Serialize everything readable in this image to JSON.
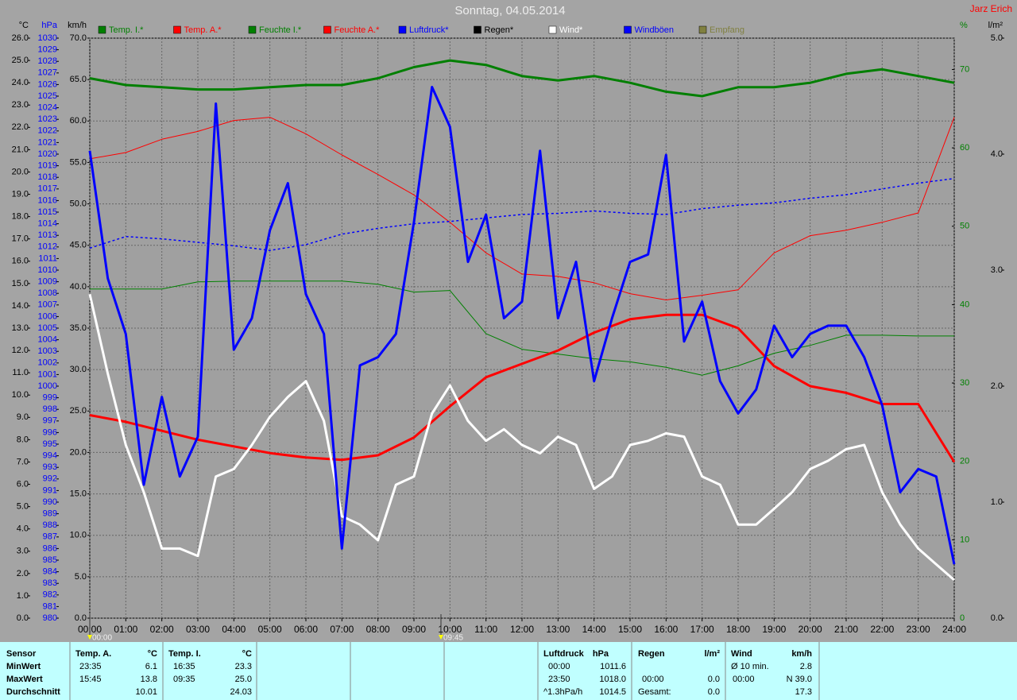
{
  "chart_data": {
    "type": "line",
    "title": "Sonntag, 04.05.2014",
    "author": "Jarz Erich",
    "xlim": [
      0,
      24
    ],
    "xticks": [
      {
        "value": 0,
        "label": "00:00"
      },
      {
        "value": 1,
        "label": "01:00"
      },
      {
        "value": 2,
        "label": "02:00"
      },
      {
        "value": 3,
        "label": "03:00"
      },
      {
        "value": 4,
        "label": "04:00"
      },
      {
        "value": 5,
        "label": "05:00"
      },
      {
        "value": 6,
        "label": "06:00"
      },
      {
        "value": 7,
        "label": "07:00"
      },
      {
        "value": 8,
        "label": "08:00"
      },
      {
        "value": 9,
        "label": "09:00"
      },
      {
        "value": 10,
        "label": "10:00"
      },
      {
        "value": 11,
        "label": "11:00"
      },
      {
        "value": 12,
        "label": "12:00"
      },
      {
        "value": 13,
        "label": "13:00"
      },
      {
        "value": 14,
        "label": "14:00"
      },
      {
        "value": 15,
        "label": "15:00"
      },
      {
        "value": 16,
        "label": "16:00"
      },
      {
        "value": 17,
        "label": "17:00"
      },
      {
        "value": 18,
        "label": "18:00"
      },
      {
        "value": 19,
        "label": "19:00"
      },
      {
        "value": 20,
        "label": "20:00"
      },
      {
        "value": 21,
        "label": "21:00"
      },
      {
        "value": 22,
        "label": "22:00"
      },
      {
        "value": 23,
        "label": "23:00"
      },
      {
        "value": 24,
        "label": "24:00"
      }
    ],
    "markers": [
      {
        "value": 0,
        "label": "00:00"
      },
      {
        "value": 9.75,
        "label": "09:45"
      }
    ],
    "grid": true,
    "axes": {
      "temp": {
        "label": "°C",
        "color": "#000000",
        "lim": [
          0,
          26
        ],
        "ticks": [
          {
            "value": 0,
            "label": "0.0"
          },
          {
            "value": 1,
            "label": "1.0"
          },
          {
            "value": 2,
            "label": "2.0"
          },
          {
            "value": 3,
            "label": "3.0"
          },
          {
            "value": 4,
            "label": "4.0"
          },
          {
            "value": 5,
            "label": "5.0"
          },
          {
            "value": 6,
            "label": "6.0"
          },
          {
            "value": 7,
            "label": "7.0"
          },
          {
            "value": 8,
            "label": "8.0"
          },
          {
            "value": 9,
            "label": "9.0"
          },
          {
            "value": 10,
            "label": "10.0"
          },
          {
            "value": 11,
            "label": "11.0"
          },
          {
            "value": 12,
            "label": "12.0"
          },
          {
            "value": 13,
            "label": "13.0"
          },
          {
            "value": 14,
            "label": "14.0"
          },
          {
            "value": 15,
            "label": "15.0"
          },
          {
            "value": 16,
            "label": "16.0"
          },
          {
            "value": 17,
            "label": "17.0"
          },
          {
            "value": 18,
            "label": "18.0"
          },
          {
            "value": 19,
            "label": "19.0"
          },
          {
            "value": 20,
            "label": "20.0"
          },
          {
            "value": 21,
            "label": "21.0"
          },
          {
            "value": 22,
            "label": "22.0"
          },
          {
            "value": 23,
            "label": "23.0"
          },
          {
            "value": 24,
            "label": "24.0"
          },
          {
            "value": 25,
            "label": "25.0"
          },
          {
            "value": 26,
            "label": "26.0"
          }
        ]
      },
      "pressure": {
        "label": "hPa",
        "color": "#0000ff",
        "lim": [
          980,
          1030
        ],
        "ticks": [
          980,
          981,
          982,
          983,
          984,
          985,
          986,
          987,
          988,
          989,
          990,
          991,
          992,
          993,
          994,
          995,
          996,
          997,
          998,
          999,
          1000,
          1001,
          1002,
          1003,
          1004,
          1005,
          1006,
          1007,
          1008,
          1009,
          1010,
          1011,
          1012,
          1013,
          1014,
          1015,
          1016,
          1017,
          1018,
          1019,
          1020,
          1021,
          1022,
          1023,
          1024,
          1025,
          1026,
          1027,
          1028,
          1029,
          1030
        ]
      },
      "speed": {
        "label": "km/h",
        "color": "#000000",
        "lim": [
          0,
          70
        ],
        "ticks": [
          {
            "value": 0,
            "label": "0.0"
          },
          {
            "value": 5,
            "label": "5.0"
          },
          {
            "value": 10,
            "label": "10.0"
          },
          {
            "value": 15,
            "label": "15.0"
          },
          {
            "value": 20,
            "label": "20.0"
          },
          {
            "value": 25,
            "label": "25.0"
          },
          {
            "value": 30,
            "label": "30.0"
          },
          {
            "value": 35,
            "label": "35.0"
          },
          {
            "value": 40,
            "label": "40.0"
          },
          {
            "value": 45,
            "label": "45.0"
          },
          {
            "value": 50,
            "label": "50.0"
          },
          {
            "value": 55,
            "label": "55.0"
          },
          {
            "value": 60,
            "label": "60.0"
          },
          {
            "value": 65,
            "label": "65.0"
          },
          {
            "value": 70,
            "label": "70.0"
          }
        ]
      },
      "humidity": {
        "label": "%",
        "color": "#008000",
        "lim": [
          0,
          74
        ],
        "ticks": [
          0,
          10,
          20,
          30,
          40,
          50,
          60,
          70
        ]
      },
      "rain": {
        "label": "l/m²",
        "color": "#000000",
        "lim": [
          0,
          5
        ],
        "ticks": [
          {
            "value": 0,
            "label": "0.0"
          },
          {
            "value": 1,
            "label": "1.0"
          },
          {
            "value": 2,
            "label": "2.0"
          },
          {
            "value": 3,
            "label": "3.0"
          },
          {
            "value": 4,
            "label": "4.0"
          },
          {
            "value": 5,
            "label": "5.0"
          }
        ]
      }
    },
    "series": [
      {
        "name": "Temp. I.*",
        "color": "#007f00",
        "axis": "temp",
        "linewidth": 3,
        "x": [
          0,
          1,
          2,
          3,
          4,
          5,
          6,
          7,
          8,
          9,
          10,
          11,
          12,
          13,
          14,
          15,
          16,
          17,
          18,
          19,
          20,
          21,
          22,
          23,
          24
        ],
        "values": [
          24.2,
          23.9,
          23.8,
          23.7,
          23.7,
          23.8,
          23.9,
          23.9,
          24.2,
          24.7,
          25.0,
          24.8,
          24.3,
          24.1,
          24.3,
          24.0,
          23.6,
          23.4,
          23.8,
          23.8,
          24.0,
          24.4,
          24.6,
          24.3,
          24.0
        ]
      },
      {
        "name": "Temp. A.*",
        "color": "#ff0000",
        "axis": "temp",
        "linewidth": 3,
        "x": [
          0,
          1,
          2,
          3,
          4,
          5,
          6,
          7,
          8,
          9,
          10,
          11,
          12,
          13,
          14,
          15,
          16,
          17,
          18,
          19,
          20,
          21,
          22,
          23,
          24
        ],
        "values": [
          9.1,
          8.8,
          8.4,
          8.0,
          7.7,
          7.4,
          7.2,
          7.1,
          7.3,
          8.1,
          9.5,
          10.8,
          11.4,
          12.0,
          12.8,
          13.4,
          13.6,
          13.6,
          13.0,
          11.3,
          10.4,
          10.1,
          9.6,
          9.6,
          7.0
        ]
      },
      {
        "name": "Feuchte I.*",
        "color": "#008000",
        "axis": "humidity",
        "linewidth": 1,
        "x": [
          0,
          1,
          2,
          3,
          4,
          5,
          6,
          7,
          8,
          9,
          10,
          11,
          12,
          13,
          14,
          15,
          16,
          17,
          18,
          19,
          20,
          21,
          22,
          23,
          24
        ],
        "values": [
          42.0,
          42.0,
          42.0,
          42.9,
          43.0,
          43.0,
          43.0,
          43.0,
          42.6,
          41.6,
          41.8,
          36.3,
          34.3,
          33.7,
          33.1,
          32.7,
          32.0,
          31.0,
          32.2,
          33.8,
          34.8,
          36.1,
          36.1,
          36.0,
          36.0
        ]
      },
      {
        "name": "Feuchte A.*",
        "color": "#ff0000",
        "axis": "humidity",
        "linewidth": 1,
        "x": [
          0,
          1,
          2,
          3,
          4,
          5,
          6,
          7,
          8,
          9,
          10,
          11,
          12,
          13,
          14,
          15,
          16,
          17,
          18,
          19,
          20,
          21,
          22,
          23,
          24
        ],
        "values": [
          58.6,
          59.4,
          61.1,
          62.1,
          63.5,
          63.9,
          61.8,
          59.1,
          56.6,
          54.0,
          50.5,
          46.6,
          43.9,
          43.6,
          42.8,
          41.4,
          40.6,
          41.2,
          41.9,
          46.6,
          48.8,
          49.5,
          50.5,
          51.7,
          63.9
        ]
      },
      {
        "name": "Luftdruck*",
        "color": "#0000ff",
        "axis": "pressure",
        "linewidth": 1.5,
        "linestyle": "dotted",
        "x": [
          0,
          1,
          2,
          3,
          4,
          5,
          6,
          7,
          8,
          9,
          10,
          11,
          12,
          13,
          14,
          15,
          16,
          17,
          18,
          19,
          20,
          21,
          22,
          23,
          24
        ],
        "values": [
          1011.9,
          1012.9,
          1012.7,
          1012.4,
          1012.1,
          1011.7,
          1012.2,
          1013.1,
          1013.6,
          1014.0,
          1014.2,
          1014.5,
          1014.8,
          1014.9,
          1015.1,
          1014.9,
          1014.8,
          1015.3,
          1015.6,
          1015.8,
          1016.2,
          1016.5,
          1017.0,
          1017.5,
          1017.9
        ]
      },
      {
        "name": "Regen*",
        "color": "#000000",
        "axis": "rain",
        "x": [],
        "values": []
      },
      {
        "name": "Wind*",
        "color": "#ffffff",
        "axis": "speed",
        "linewidth": 3,
        "x": [
          0,
          0.5,
          1,
          1.5,
          2,
          2.5,
          3,
          3.5,
          4,
          4.5,
          5,
          5.5,
          6,
          6.5,
          7,
          7.5,
          8,
          8.5,
          9,
          9.5,
          10,
          10.5,
          11,
          11.5,
          12,
          12.5,
          13,
          13.5,
          14,
          14.5,
          15,
          15.5,
          16,
          16.5,
          17,
          17.5,
          18,
          18.5,
          19,
          19.5,
          20,
          20.5,
          21,
          21.5,
          22,
          22.5,
          23,
          23.5,
          24
        ],
        "values": [
          39.1,
          29.5,
          20.9,
          15.2,
          8.4,
          8.4,
          7.5,
          17.1,
          18.0,
          20.9,
          24.3,
          26.7,
          28.6,
          23.8,
          12.3,
          11.3,
          9.4,
          16.1,
          17.1,
          24.7,
          28.1,
          23.8,
          21.4,
          22.8,
          20.9,
          19.9,
          21.9,
          20.9,
          15.6,
          17.1,
          20.9,
          21.4,
          22.3,
          21.9,
          17.1,
          16.1,
          11.3,
          11.3,
          13.2,
          15.2,
          18.0,
          19.0,
          20.4,
          20.9,
          15.2,
          11.3,
          8.4,
          6.5,
          4.6
        ]
      },
      {
        "name": "Windböen",
        "color": "#0000ff",
        "axis": "speed",
        "linewidth": 3,
        "x": [
          0,
          0.5,
          1,
          1.5,
          2,
          2.5,
          3,
          3.5,
          4,
          4.5,
          5,
          5.5,
          6,
          6.5,
          7,
          7.5,
          8,
          8.5,
          9,
          9.5,
          10,
          10.5,
          11,
          11.5,
          12,
          12.5,
          13,
          13.5,
          14,
          14.5,
          15,
          15.5,
          16,
          16.5,
          17,
          17.5,
          18,
          18.5,
          19,
          19.5,
          20,
          20.5,
          21,
          21.5,
          22,
          22.5,
          23,
          23.5,
          24
        ],
        "values": [
          56.4,
          41.0,
          34.3,
          16.1,
          26.7,
          17.1,
          21.9,
          62.1,
          32.4,
          36.2,
          46.8,
          52.5,
          39.1,
          34.3,
          8.4,
          30.5,
          31.5,
          34.3,
          47.8,
          64.1,
          59.3,
          43.0,
          48.7,
          36.2,
          38.2,
          56.4,
          36.2,
          43.0,
          28.6,
          36.2,
          43.0,
          43.9,
          55.9,
          33.4,
          38.2,
          28.6,
          24.7,
          27.6,
          35.3,
          31.5,
          34.3,
          35.3,
          35.3,
          31.5,
          25.7,
          15.2,
          18.0,
          17.1,
          6.5
        ]
      },
      {
        "name": "Empfang",
        "color": "#808040",
        "axis": "rain",
        "x": [],
        "values": []
      }
    ]
  },
  "stats": {
    "row_labels": [
      "Sensor",
      "MinWert",
      "MaxWert",
      "Durchschnitt"
    ],
    "columns": [
      {
        "header": "Temp. A.",
        "unit": "°C",
        "rows": [
          {
            "label": "23:35",
            "value": "6.1"
          },
          {
            "label": "15:45",
            "value": "13.8"
          },
          {
            "value": "10.01"
          }
        ]
      },
      {
        "header": "Temp. I.",
        "unit": "°C",
        "rows": [
          {
            "label": "16:35",
            "value": "23.3"
          },
          {
            "label": "09:35",
            "value": "25.0"
          },
          {
            "value": "24.03"
          }
        ]
      },
      {
        "header": "Luftdruck",
        "unit": "hPa",
        "rows": [
          {
            "label": "00:00",
            "value": "1011.6"
          },
          {
            "label": "23:50",
            "value": "1018.0"
          },
          {
            "label": "^1.3hPa/h",
            "value": "1014.5"
          }
        ]
      },
      {
        "header": "Regen",
        "unit": "l/m²",
        "rows": [
          null,
          {
            "label": "00:00",
            "value": "0.0"
          },
          {
            "label": "Gesamt:",
            "value": "0.0"
          }
        ]
      },
      {
        "header": "Wind",
        "unit": "km/h",
        "rows": [
          {
            "label": "Ø 10 min.",
            "value": "2.8"
          },
          {
            "label": "00:00",
            "value": "N 39.0"
          },
          {
            "value": "17.3"
          }
        ]
      }
    ]
  }
}
